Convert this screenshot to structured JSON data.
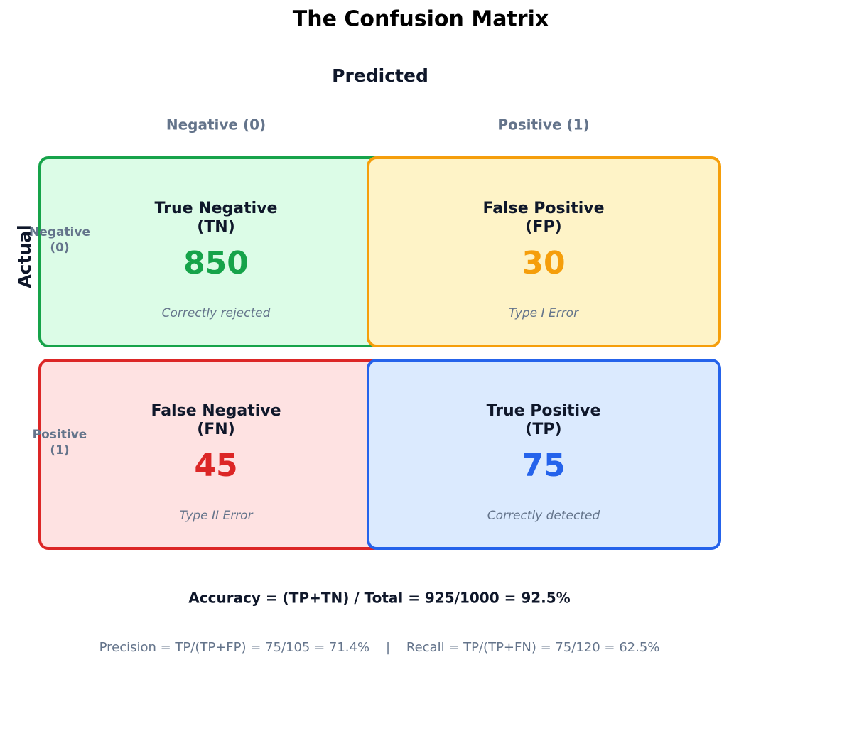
{
  "title": "The Confusion Matrix",
  "predicted_label": "Predicted",
  "actual_label": "Actual",
  "columns": [
    "Negative (0)",
    "Positive (1)"
  ],
  "rows": [
    [
      "Negative",
      "(0)"
    ],
    [
      "Positive",
      "(1)"
    ]
  ],
  "cells": [
    {
      "name": [
        "True Negative",
        "(TN)"
      ],
      "count": 850,
      "note": "Correctly rejected",
      "color": "#16a34a",
      "fill": "#dcfce7"
    },
    {
      "name": [
        "False Positive",
        "(FP)"
      ],
      "count": 30,
      "note": "Type I Error",
      "color": "#f59e0b",
      "fill": "#fef3c7"
    },
    {
      "name": [
        "False Negative",
        "(FN)"
      ],
      "count": 45,
      "note": "Type II Error",
      "color": "#dc2626",
      "fill": "#fee2e2"
    },
    {
      "name": [
        "True Positive",
        "(TP)"
      ],
      "count": 75,
      "note": "Correctly detected",
      "color": "#2563eb",
      "fill": "#dbeafe"
    }
  ],
  "accuracy": "Accuracy = (TP+TN) / Total = 925/1000 = 92.5%",
  "metrics": "Precision = TP/(TP+FP) = 75/105 = 71.4%    |    Recall = TP/(TP+FN) = 75/120 = 62.5%"
}
